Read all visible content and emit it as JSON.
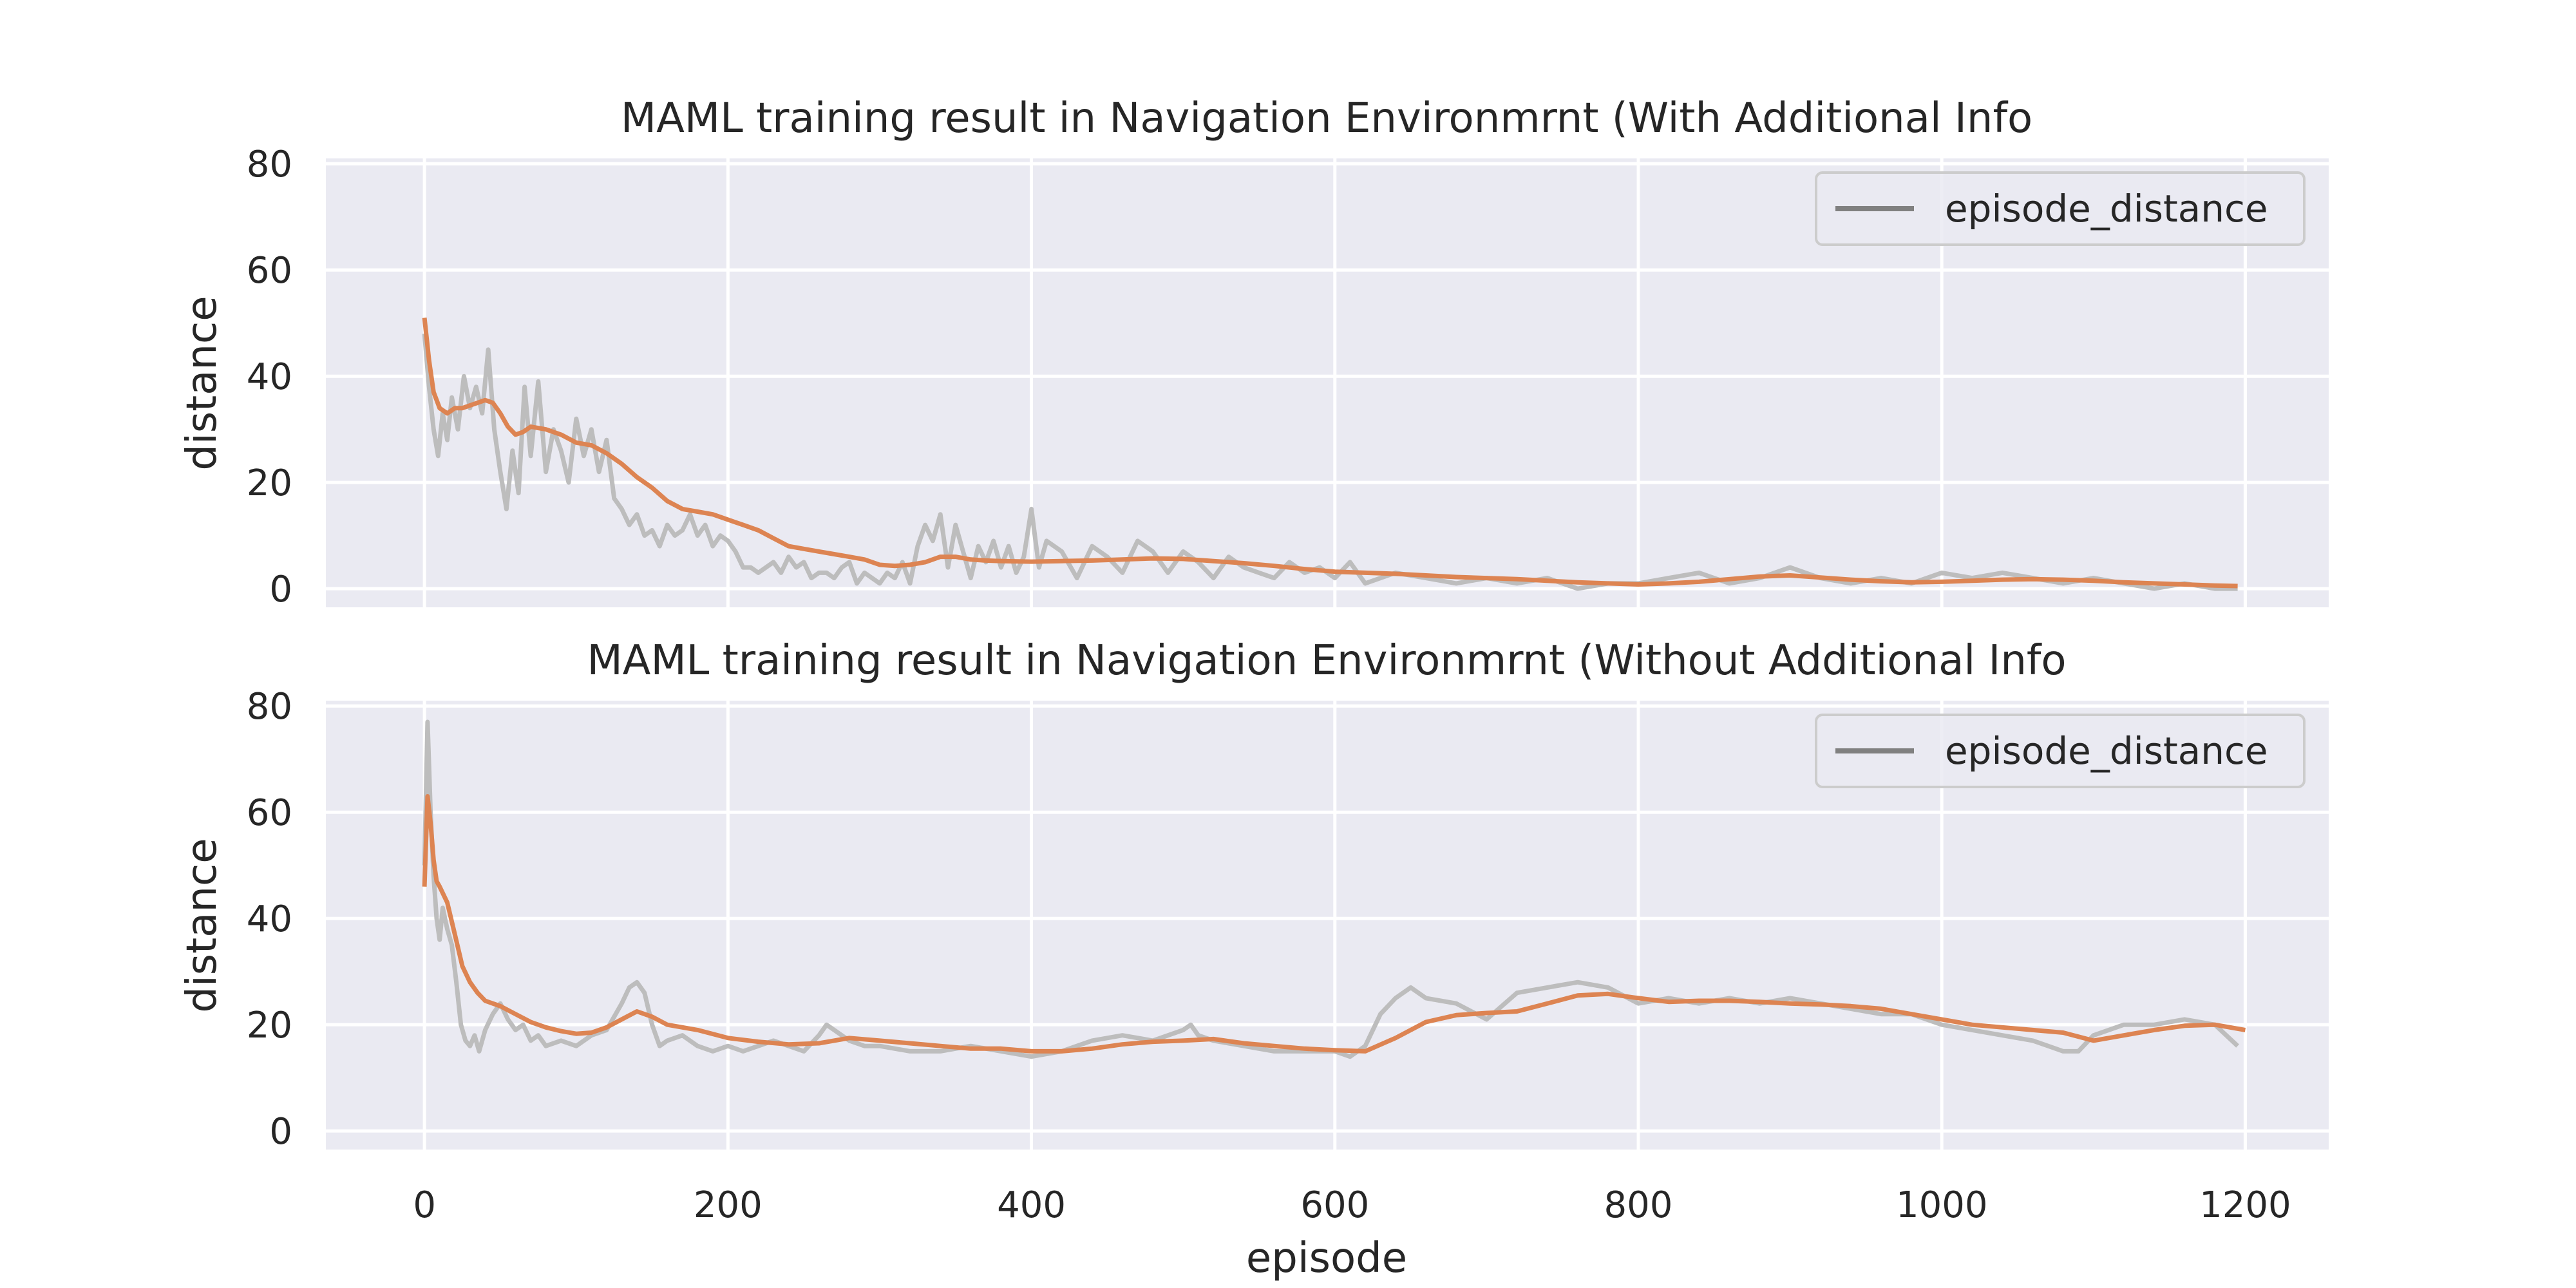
{
  "chart_data": [
    {
      "type": "line",
      "title": "MAML training result in Navigation Environmrnt (With Additional Info",
      "xlabel": "",
      "ylabel": "distance",
      "xlim": [
        -65,
        1255
      ],
      "ylim": [
        -3.5,
        81
      ],
      "xticks": [
        0,
        200,
        400,
        600,
        800,
        1000,
        1200
      ],
      "yticks": [
        0,
        20,
        40,
        60,
        80
      ],
      "xtick_labels": [
        "0",
        "200",
        "400",
        "600",
        "800",
        "1000",
        "1200"
      ],
      "ytick_labels": [
        "0",
        "20",
        "40",
        "60",
        "80"
      ],
      "grid": true,
      "legend": {
        "position": "top-right",
        "entries": [
          "episode_distance"
        ]
      },
      "colors": {
        "raw": "#bdbdbd",
        "smoothed": "#dd8452",
        "legend_line": "#808080",
        "background": "#eaeaf2",
        "grid": "#ffffff"
      },
      "series": [
        {
          "name": "episode_distance",
          "x": [
            0,
            3,
            6,
            9,
            12,
            15,
            18,
            22,
            26,
            30,
            34,
            38,
            42,
            46,
            50,
            54,
            58,
            62,
            66,
            70,
            75,
            80,
            85,
            90,
            95,
            100,
            105,
            110,
            115,
            120,
            125,
            130,
            135,
            140,
            145,
            150,
            155,
            160,
            165,
            170,
            175,
            180,
            185,
            190,
            195,
            200,
            205,
            210,
            215,
            220,
            225,
            230,
            235,
            240,
            245,
            250,
            255,
            260,
            265,
            270,
            275,
            280,
            285,
            290,
            295,
            300,
            305,
            310,
            315,
            320,
            325,
            330,
            335,
            340,
            345,
            350,
            355,
            360,
            365,
            370,
            375,
            380,
            385,
            390,
            395,
            400,
            405,
            410,
            420,
            430,
            440,
            450,
            460,
            470,
            480,
            490,
            500,
            510,
            520,
            530,
            540,
            550,
            560,
            570,
            580,
            590,
            600,
            610,
            620,
            640,
            660,
            680,
            700,
            720,
            740,
            760,
            780,
            800,
            820,
            840,
            860,
            880,
            900,
            920,
            940,
            960,
            980,
            1000,
            1020,
            1040,
            1060,
            1080,
            1100,
            1120,
            1140,
            1160,
            1180,
            1195
          ],
          "y": [
            48,
            38,
            30,
            25,
            33,
            28,
            36,
            30,
            40,
            34,
            38,
            33,
            45,
            30,
            22,
            15,
            26,
            18,
            38,
            25,
            39,
            22,
            30,
            26,
            20,
            32,
            25,
            30,
            22,
            28,
            17,
            15,
            12,
            14,
            10,
            11,
            8,
            12,
            10,
            11,
            14,
            10,
            12,
            8,
            10,
            9,
            7,
            4,
            4,
            3,
            4,
            5,
            3,
            6,
            4,
            5,
            2,
            3,
            3,
            2,
            4,
            5,
            1,
            3,
            2,
            1,
            3,
            2,
            5,
            1,
            8,
            12,
            9,
            14,
            4,
            12,
            7,
            2,
            8,
            5,
            9,
            4,
            8,
            3,
            6,
            15,
            4,
            9,
            7,
            2,
            8,
            6,
            3,
            9,
            7,
            3,
            7,
            5,
            2,
            6,
            4,
            3,
            2,
            5,
            3,
            4,
            2,
            5,
            1,
            3,
            2,
            1,
            2,
            1,
            2,
            0,
            1,
            1,
            2,
            3,
            1,
            2,
            4,
            2,
            1,
            2,
            1,
            3,
            2,
            3,
            2,
            1,
            2,
            1,
            0,
            1,
            0,
            0
          ]
        },
        {
          "x": [
            0,
            3,
            6,
            10,
            15,
            20,
            25,
            30,
            35,
            40,
            45,
            50,
            55,
            60,
            65,
            70,
            80,
            90,
            100,
            110,
            120,
            130,
            140,
            150,
            160,
            170,
            180,
            190,
            200,
            210,
            220,
            230,
            240,
            250,
            260,
            270,
            280,
            290,
            300,
            310,
            320,
            330,
            340,
            350,
            360,
            370,
            380,
            400,
            420,
            440,
            460,
            480,
            500,
            520,
            540,
            560,
            580,
            600,
            620,
            640,
            660,
            680,
            700,
            720,
            740,
            760,
            780,
            800,
            820,
            840,
            860,
            880,
            900,
            920,
            940,
            960,
            980,
            1000,
            1020,
            1040,
            1060,
            1080,
            1100,
            1120,
            1140,
            1160,
            1180,
            1195
          ],
          "y": [
            51,
            43,
            37,
            34,
            33,
            34,
            34,
            34.5,
            35,
            35.5,
            35,
            33,
            30.5,
            29,
            29.5,
            30.5,
            30,
            29,
            27.5,
            27,
            25.5,
            23.5,
            21,
            19,
            16.5,
            15,
            14.5,
            14,
            13,
            12,
            11,
            9.5,
            8,
            7.5,
            7,
            6.5,
            6,
            5.5,
            4.5,
            4.3,
            4.5,
            5,
            6,
            6,
            5.5,
            5.3,
            5.2,
            5.1,
            5.2,
            5.3,
            5.5,
            5.7,
            5.6,
            5.2,
            4.8,
            4.3,
            3.7,
            3.2,
            3,
            2.8,
            2.5,
            2.2,
            2,
            1.8,
            1.5,
            1.2,
            1,
            0.8,
            1,
            1.3,
            1.8,
            2.3,
            2.5,
            2.1,
            1.7,
            1.4,
            1.2,
            1.3,
            1.5,
            1.7,
            1.8,
            1.7,
            1.5,
            1.2,
            1,
            0.8,
            0.6,
            0.5
          ]
        }
      ]
    },
    {
      "type": "line",
      "title": "MAML training result in Navigation Environmrnt (Without Additional Info",
      "xlabel": "episode",
      "ylabel": "distance",
      "xlim": [
        -65,
        1255
      ],
      "ylim": [
        -3.5,
        81
      ],
      "xticks": [
        0,
        200,
        400,
        600,
        800,
        1000,
        1200
      ],
      "yticks": [
        0,
        20,
        40,
        60,
        80
      ],
      "xtick_labels": [
        "0",
        "200",
        "400",
        "600",
        "800",
        "1000",
        "1200"
      ],
      "ytick_labels": [
        "0",
        "20",
        "40",
        "60",
        "80"
      ],
      "grid": true,
      "legend": {
        "position": "top-right",
        "entries": [
          "episode_distance"
        ]
      },
      "colors": {
        "raw": "#bdbdbd",
        "smoothed": "#dd8452",
        "legend_line": "#808080",
        "background": "#eaeaf2",
        "grid": "#ffffff"
      },
      "series": [
        {
          "name": "episode_distance",
          "x": [
            0,
            2,
            4,
            6,
            8,
            10,
            12,
            15,
            18,
            21,
            24,
            27,
            30,
            33,
            36,
            40,
            45,
            50,
            55,
            60,
            65,
            70,
            75,
            80,
            90,
            100,
            110,
            120,
            130,
            135,
            140,
            145,
            150,
            155,
            160,
            170,
            180,
            190,
            200,
            210,
            220,
            230,
            240,
            250,
            260,
            265,
            270,
            280,
            290,
            300,
            320,
            340,
            360,
            380,
            400,
            420,
            440,
            460,
            480,
            500,
            505,
            510,
            520,
            540,
            560,
            580,
            600,
            610,
            620,
            630,
            640,
            650,
            660,
            680,
            700,
            720,
            740,
            760,
            780,
            800,
            820,
            840,
            860,
            880,
            900,
            920,
            940,
            960,
            980,
            1000,
            1020,
            1040,
            1060,
            1080,
            1090,
            1100,
            1120,
            1140,
            1160,
            1180,
            1195
          ],
          "y": [
            50,
            77,
            60,
            48,
            40,
            36,
            42,
            38,
            35,
            28,
            20,
            17,
            16,
            18,
            15,
            19,
            22,
            24,
            21,
            19,
            20,
            17,
            18,
            16,
            17,
            16,
            18,
            19,
            24,
            27,
            28,
            26,
            20,
            16,
            17,
            18,
            16,
            15,
            16,
            15,
            16,
            17,
            16,
            15,
            18,
            20,
            19,
            17,
            16,
            16,
            15,
            15,
            16,
            15,
            14,
            15,
            17,
            18,
            17,
            19,
            20,
            18,
            17,
            16,
            15,
            15,
            15,
            14,
            16,
            22,
            25,
            27,
            25,
            24,
            21,
            26,
            27,
            28,
            27,
            24,
            25,
            24,
            25,
            24,
            25,
            24,
            23,
            22,
            22,
            20,
            19,
            18,
            17,
            15,
            15,
            18,
            20,
            20,
            21,
            20,
            16
          ]
        },
        {
          "x": [
            0,
            2,
            4,
            6,
            8,
            10,
            15,
            20,
            25,
            30,
            35,
            40,
            45,
            50,
            60,
            70,
            80,
            90,
            100,
            110,
            120,
            130,
            140,
            150,
            160,
            170,
            180,
            200,
            220,
            240,
            260,
            280,
            300,
            320,
            340,
            360,
            380,
            400,
            420,
            440,
            460,
            480,
            500,
            520,
            540,
            560,
            580,
            600,
            620,
            640,
            660,
            680,
            700,
            720,
            740,
            760,
            780,
            800,
            820,
            840,
            860,
            880,
            900,
            920,
            940,
            960,
            980,
            1000,
            1020,
            1040,
            1060,
            1080,
            1100,
            1120,
            1140,
            1160,
            1180,
            1200
          ],
          "y": [
            46,
            63,
            58,
            51,
            47,
            46,
            43,
            37,
            31,
            28,
            26,
            24.5,
            24,
            23.5,
            22,
            20.5,
            19.5,
            18.8,
            18.3,
            18.5,
            19.5,
            21,
            22.5,
            21.5,
            20,
            19.5,
            19,
            17.5,
            16.8,
            16.3,
            16.5,
            17.5,
            17,
            16.5,
            16,
            15.5,
            15.5,
            15,
            15,
            15.5,
            16.3,
            16.8,
            17,
            17.3,
            16.5,
            16,
            15.5,
            15.2,
            15,
            17.5,
            20.5,
            21.8,
            22.2,
            22.5,
            24,
            25.5,
            25.8,
            25,
            24.3,
            24.5,
            24.5,
            24.3,
            24,
            23.8,
            23.5,
            23,
            22,
            21,
            20,
            19.5,
            19,
            18.5,
            17,
            18,
            19,
            19.8,
            20,
            19
          ]
        }
      ]
    }
  ]
}
